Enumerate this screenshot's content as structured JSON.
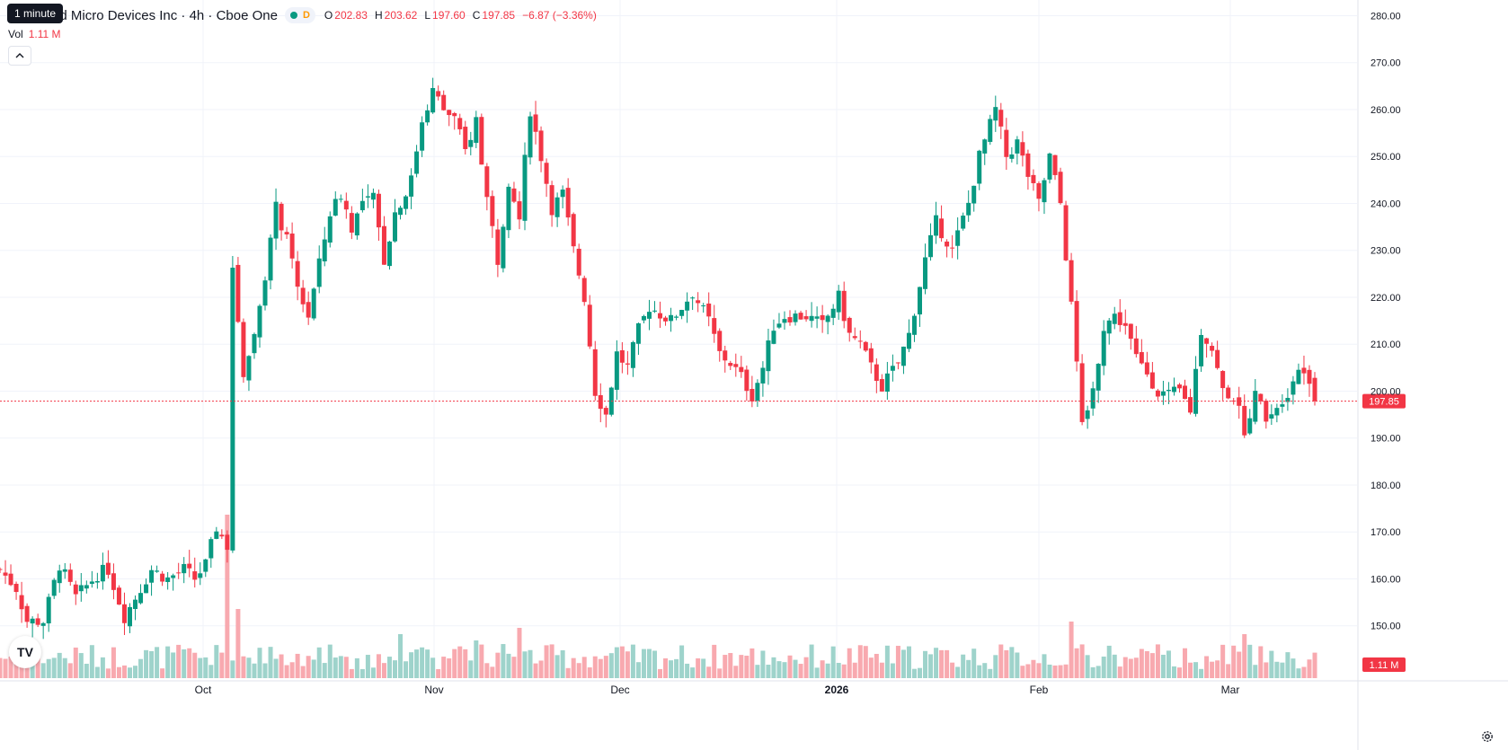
{
  "header": {
    "title": "Advanced Micro Devices Inc · 4h · Cboe One",
    "tooltip": "1 minute",
    "interval_chip": "D",
    "ohlc": {
      "o_label": "O",
      "o": "202.83",
      "h_label": "H",
      "h": "203.62",
      "l_label": "L",
      "l": "197.60",
      "c_label": "C",
      "c": "197.85",
      "change": "−6.87 (−3.36%)"
    },
    "volume_label": "Vol",
    "volume_value": "1.11 M",
    "collapse_icon": "chevron-up-icon"
  },
  "footer": {
    "logo_text": "TV",
    "settings_icon": "gear-icon"
  },
  "colors": {
    "up": "#089981",
    "down": "#f23645",
    "up_volume": "#9ed3cb",
    "down_volume": "#f8a9af",
    "grid": "#f0f3fa",
    "price_line": "#f23645"
  },
  "chart_data": {
    "type": "candlestick",
    "x_axis_labels": [
      "Oct",
      "Nov",
      "Dec",
      "2026",
      "Feb",
      "Mar"
    ],
    "y_axis_labels": [
      "280.00",
      "270.00",
      "260.00",
      "250.00",
      "240.00",
      "230.00",
      "220.00",
      "210.00",
      "200.00",
      "190.00",
      "180.00",
      "170.00",
      "160.00",
      "150.00"
    ],
    "ylim": [
      140,
      282
    ],
    "last_price": 197.85,
    "last_price_label": "197.85",
    "last_volume_label": "1.11 M",
    "waypoints": [
      [
        0,
        162
      ],
      [
        3,
        158
      ],
      [
        5,
        151
      ],
      [
        8,
        151
      ],
      [
        11,
        163
      ],
      [
        14,
        156
      ],
      [
        18,
        161
      ],
      [
        20,
        162
      ],
      [
        23,
        152
      ],
      [
        26,
        158
      ],
      [
        28,
        162
      ],
      [
        31,
        160
      ],
      [
        34,
        162
      ],
      [
        36,
        160
      ],
      [
        38,
        163
      ],
      [
        40,
        171
      ],
      [
        42,
        167
      ],
      [
        43,
        226
      ],
      [
        45,
        204
      ],
      [
        47,
        212
      ],
      [
        49,
        225
      ],
      [
        51,
        239
      ],
      [
        53,
        232
      ],
      [
        55,
        222
      ],
      [
        57,
        216
      ],
      [
        59,
        227
      ],
      [
        61,
        238
      ],
      [
        63,
        242
      ],
      [
        65,
        235
      ],
      [
        67,
        240
      ],
      [
        69,
        241
      ],
      [
        71,
        228
      ],
      [
        73,
        238
      ],
      [
        76,
        245
      ],
      [
        78,
        258
      ],
      [
        80,
        264
      ],
      [
        82,
        260
      ],
      [
        84,
        258
      ],
      [
        86,
        251
      ],
      [
        88,
        258
      ],
      [
        90,
        241
      ],
      [
        92,
        228
      ],
      [
        94,
        245
      ],
      [
        96,
        238
      ],
      [
        98,
        260
      ],
      [
        100,
        250
      ],
      [
        102,
        239
      ],
      [
        104,
        242
      ],
      [
        106,
        230
      ],
      [
        108,
        220
      ],
      [
        110,
        200
      ],
      [
        112,
        195
      ],
      [
        114,
        208
      ],
      [
        116,
        205
      ],
      [
        118,
        213
      ],
      [
        120,
        218
      ],
      [
        124,
        215
      ],
      [
        128,
        221
      ],
      [
        131,
        215
      ],
      [
        133,
        208
      ],
      [
        135,
        206
      ],
      [
        137,
        203
      ],
      [
        139,
        199
      ],
      [
        141,
        205
      ],
      [
        143,
        214
      ],
      [
        145,
        216
      ],
      [
        149,
        216
      ],
      [
        152,
        214
      ],
      [
        155,
        220
      ],
      [
        157,
        212
      ],
      [
        159,
        210
      ],
      [
        161,
        205
      ],
      [
        163,
        201
      ],
      [
        166,
        206
      ],
      [
        168,
        212
      ],
      [
        171,
        228
      ],
      [
        173,
        236
      ],
      [
        176,
        230
      ],
      [
        179,
        240
      ],
      [
        181,
        250
      ],
      [
        184,
        260
      ],
      [
        186,
        250
      ],
      [
        188,
        253
      ],
      [
        190,
        246
      ],
      [
        192,
        240
      ],
      [
        194,
        250
      ],
      [
        196,
        240
      ],
      [
        198,
        218
      ],
      [
        200,
        192
      ],
      [
        202,
        200
      ],
      [
        204,
        214
      ],
      [
        206,
        216
      ],
      [
        208,
        214
      ],
      [
        210,
        207
      ],
      [
        212,
        204
      ],
      [
        214,
        200
      ],
      [
        216,
        199
      ],
      [
        218,
        200
      ],
      [
        220,
        196
      ],
      [
        222,
        213
      ],
      [
        224,
        209
      ],
      [
        226,
        200
      ],
      [
        228,
        199
      ],
      [
        230,
        192
      ],
      [
        232,
        199
      ],
      [
        234,
        195
      ],
      [
        236,
        197
      ],
      [
        238,
        200
      ],
      [
        240,
        205
      ],
      [
        242,
        203
      ],
      [
        243,
        197.85
      ]
    ],
    "volume_spikes": [
      [
        42,
        26
      ],
      [
        44,
        11
      ],
      [
        74,
        7
      ],
      [
        88,
        6
      ],
      [
        96,
        8
      ],
      [
        198,
        9
      ],
      [
        230,
        7
      ]
    ]
  }
}
